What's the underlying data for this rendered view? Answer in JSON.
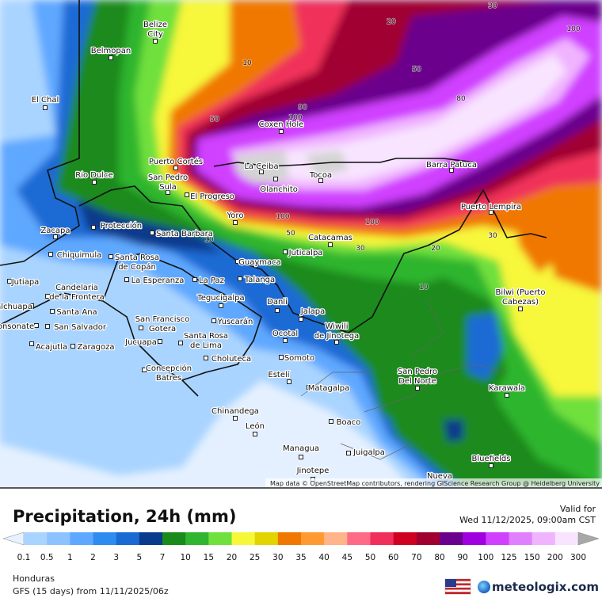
{
  "map": {
    "cities": [
      [
        "Belize",
        "City"
      ],
      [
        "Belmopan"
      ],
      [
        "El Chal"
      ],
      [
        "Rio Dulce"
      ],
      [
        "Puerto Cortés"
      ],
      [
        "San Pedro",
        "Sula"
      ],
      [
        "El Progreso"
      ],
      [
        "La Ceiba"
      ],
      [
        "Coxen Hole"
      ],
      [
        "Olanchito"
      ],
      [
        "Tocoa"
      ],
      [
        "Barra Patuca"
      ],
      [
        "Puerto Lempira"
      ],
      [
        "Yoro"
      ],
      [
        "Zacapa"
      ],
      [
        "Protección"
      ],
      [
        "Santa Barbara"
      ],
      [
        "Chiquimula"
      ],
      [
        "Santa Rosa",
        "de Copán"
      ],
      [
        "Catacamas"
      ],
      [
        "Juticalpa"
      ],
      [
        "Guaymaca"
      ],
      [
        "Jutiapa"
      ],
      [
        "La Esperanza"
      ],
      [
        "La Paz"
      ],
      [
        "Talanga"
      ],
      [
        "Candelaria",
        "de la Frontera"
      ],
      [
        "Tegucigalpa"
      ],
      [
        "Danli"
      ],
      [
        "Bilwi (Puerto",
        "Cabezas)"
      ],
      [
        "alchuapa"
      ],
      [
        "Santa Ana"
      ],
      [
        "Jalapa"
      ],
      [
        "San Francisco",
        "Gotera"
      ],
      [
        "Yuscarán"
      ],
      [
        "San Salvador"
      ],
      [
        "onsonate"
      ],
      [
        "Wiwili",
        "de Jinotega"
      ],
      [
        "Ocotal"
      ],
      [
        "Santa Rosa",
        "de Lima"
      ],
      [
        "Jucuapa"
      ],
      [
        "Acajutla"
      ],
      [
        "Zaragoza"
      ],
      [
        "Choluteca"
      ],
      [
        "Somoto"
      ],
      [
        "Concepción",
        "Batres"
      ],
      [
        "San Pedro",
        "Del Norte"
      ],
      [
        "Estelí"
      ],
      [
        "Matagalpa"
      ],
      [
        "Karawala"
      ],
      [
        "Chinandega"
      ],
      [
        "Boaco"
      ],
      [
        "León"
      ],
      [
        "Managua"
      ],
      [
        "Juigalpa"
      ],
      [
        "Bluefields"
      ],
      [
        "Jinotepe"
      ],
      [
        "Nueva"
      ]
    ],
    "contour_labels": [
      30,
      20,
      10,
      50,
      100,
      80,
      90,
      100,
      50,
      10,
      50,
      100,
      100,
      30,
      20,
      30,
      10
    ],
    "attribution": "Map data © OpenStreetMap contributors, rendering GIScience Research Group @ Heidelberg University"
  },
  "legend": {
    "title": "Precipitation, 24h (mm)",
    "valid_label": "Valid for",
    "valid_time": "Wed 11/12/2025, 09:00am CST",
    "values": [
      0.1,
      0.5,
      1,
      2,
      3,
      5,
      7,
      10,
      15,
      20,
      25,
      30,
      35,
      40,
      45,
      50,
      60,
      70,
      80,
      90,
      100,
      125,
      150,
      200,
      300
    ],
    "colors": [
      "#a9d4ff",
      "#8cc2ff",
      "#5fa8ff",
      "#2e8cf0",
      "#1a6ad4",
      "#0a3a8c",
      "#1a8a1a",
      "#2fb52f",
      "#6fe03c",
      "#f7f73a",
      "#e2d400",
      "#f07800",
      "#ff9a33",
      "#ffb48a",
      "#ff6a86",
      "#f0305a",
      "#d00020",
      "#a00030",
      "#6a008c",
      "#a000e0",
      "#d040ff",
      "#e080ff",
      "#f0b4ff",
      "#f8e4ff"
    ],
    "below_color": "#e6f2ff",
    "above_color": "#a8a8a8",
    "top_color": "#d4d4d4"
  },
  "footer": {
    "region": "Honduras",
    "model": "GFS (15 days) from 11/11/2025/06z",
    "brand": "meteologix.com"
  }
}
